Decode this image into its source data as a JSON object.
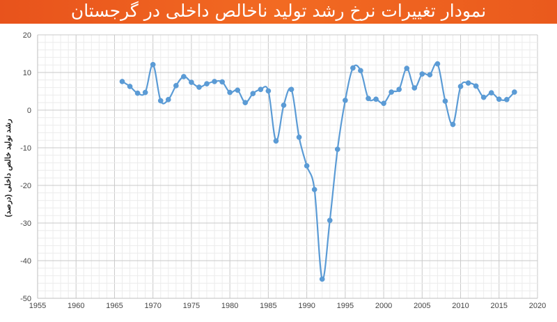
{
  "header": {
    "title": "نمودار تغییرات نرخ رشد تولید ناخالص داخلی در گرجستان",
    "accent_color": "#ee5f20"
  },
  "chart_data": {
    "type": "line",
    "title": "نمودار تغییرات نرخ رشد تولید ناخالص داخلی در گرجستان",
    "xlabel": "",
    "ylabel": "رشد تولید خالص داخلی (درصد)",
    "xlim": [
      1955,
      2020
    ],
    "ylim": [
      -50,
      20
    ],
    "x_ticks": [
      1955,
      1960,
      1965,
      1970,
      1975,
      1980,
      1985,
      1990,
      1995,
      2000,
      2005,
      2010,
      2015,
      2020
    ],
    "y_ticks": [
      20,
      10,
      0,
      -10,
      -20,
      -30,
      -40,
      -50
    ],
    "grid": true,
    "line_color": "#5b9bd5",
    "series": [
      {
        "x": [
          1966,
          1967,
          1968,
          1969,
          1970,
          1971,
          1972,
          1973,
          1974,
          1975,
          1976,
          1977,
          1978,
          1979,
          1980,
          1981,
          1982,
          1983,
          1984,
          1985,
          1986,
          1987,
          1988,
          1989,
          1990,
          1991,
          1992,
          1993,
          1994,
          1995,
          1996,
          1997,
          1998,
          1999,
          2000,
          2001,
          2002,
          2003,
          2004,
          2005,
          2006,
          2007,
          2008,
          2009,
          2010,
          2011,
          2012,
          2013,
          2014,
          2015,
          2016,
          2017
        ],
        "values": [
          7.6,
          6.3,
          4.5,
          4.7,
          12.1,
          2.5,
          2.8,
          6.5,
          8.9,
          7.4,
          6.1,
          7.0,
          7.6,
          7.5,
          4.7,
          5.3,
          2.0,
          4.4,
          5.5,
          5.1,
          -8.2,
          1.3,
          5.5,
          -7.2,
          -14.8,
          -21.1,
          -44.9,
          -29.3,
          -10.4,
          2.6,
          11.2,
          10.5,
          3.1,
          2.9,
          1.8,
          4.8,
          5.5,
          11.1,
          5.9,
          9.6,
          9.4,
          12.3,
          2.4,
          -3.8,
          6.3,
          7.2,
          6.4,
          3.4,
          4.6,
          2.9,
          2.8,
          4.8
        ]
      }
    ]
  }
}
